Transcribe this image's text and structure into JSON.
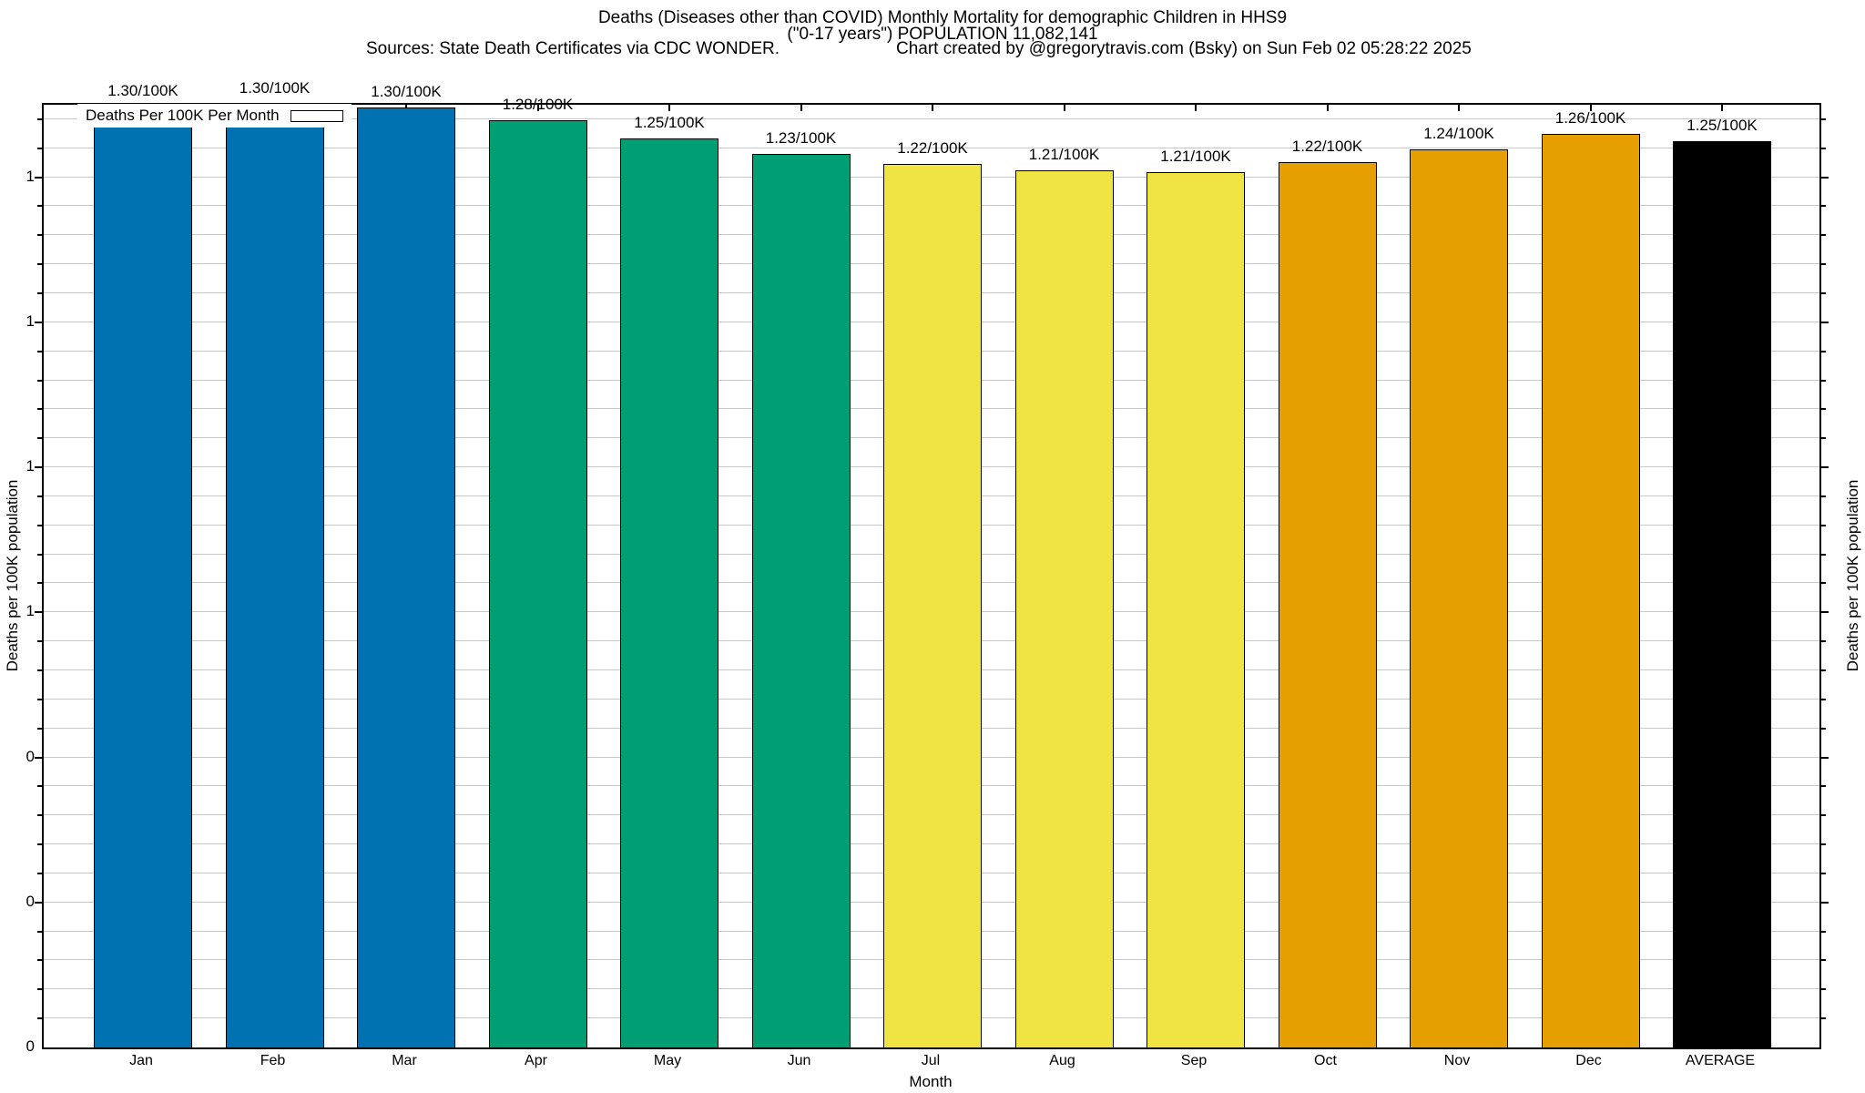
{
  "header": {
    "title_line1": "Deaths (Diseases other than COVID) Monthly Mortality for demographic Children in HHS9",
    "title_line2": "(\"0-17 years\") POPULATION 11,082,141",
    "sources": "Sources: State Death Certificates via CDC WONDER.",
    "credit": "Chart created by @gregorytravis.com (Bsky) on Sun Feb 02 05:28:22 2025"
  },
  "legend": {
    "label": "Deaths Per 100K Per Month",
    "swatch_color": "#0072B2"
  },
  "chart_data": {
    "type": "bar",
    "title": "Deaths (Diseases other than COVID) Monthly Mortality for demographic Children in HHS9",
    "subtitle": "(\"0-17 years\") POPULATION 11,082,141",
    "categories": [
      "Jan",
      "Feb",
      "Mar",
      "Apr",
      "May",
      "Jun",
      "Jul",
      "Aug",
      "Sep",
      "Oct",
      "Nov",
      "Dec",
      "AVERAGE"
    ],
    "values": [
      1.298,
      1.301,
      1.296,
      1.279,
      1.254,
      1.232,
      1.219,
      1.21,
      1.207,
      1.221,
      1.239,
      1.26,
      1.25
    ],
    "bar_labels": [
      "1.30/100K",
      "1.30/100K",
      "1.30/100K",
      "1.28/100K",
      "1.25/100K",
      "1.23/100K",
      "1.22/100K",
      "1.21/100K",
      "1.21/100K",
      "1.22/100K",
      "1.24/100K",
      "1.26/100K",
      "1.25/100K"
    ],
    "bar_colors": [
      "#0072B2",
      "#0072B2",
      "#0072B2",
      "#009E73",
      "#009E73",
      "#009E73",
      "#F0E442",
      "#F0E442",
      "#F0E442",
      "#E69F00",
      "#E69F00",
      "#E69F00",
      "#000000"
    ],
    "xlabel": "Month",
    "ylabel": "Deaths per 100K population",
    "y2label": "Deaths per 100K population",
    "ylim": [
      0,
      1.3
    ],
    "y_minor_grid_step": 0.04,
    "y_major_tick_step": 0.2,
    "y_tick_labels": [
      {
        "value": 1.2,
        "label": "1"
      },
      {
        "value": 1.0,
        "label": "1"
      },
      {
        "value": 0.8,
        "label": "1"
      },
      {
        "value": 0.6,
        "label": "1"
      },
      {
        "value": 0.4,
        "label": "0"
      },
      {
        "value": 0.2,
        "label": "0"
      },
      {
        "value": 0.0,
        "label": "0"
      }
    ],
    "grid": true,
    "legend_position": "top-left"
  },
  "colors": {
    "grid": "#c8c8c8",
    "axis": "#000000",
    "bar_border": "#000000",
    "background": "#ffffff"
  }
}
